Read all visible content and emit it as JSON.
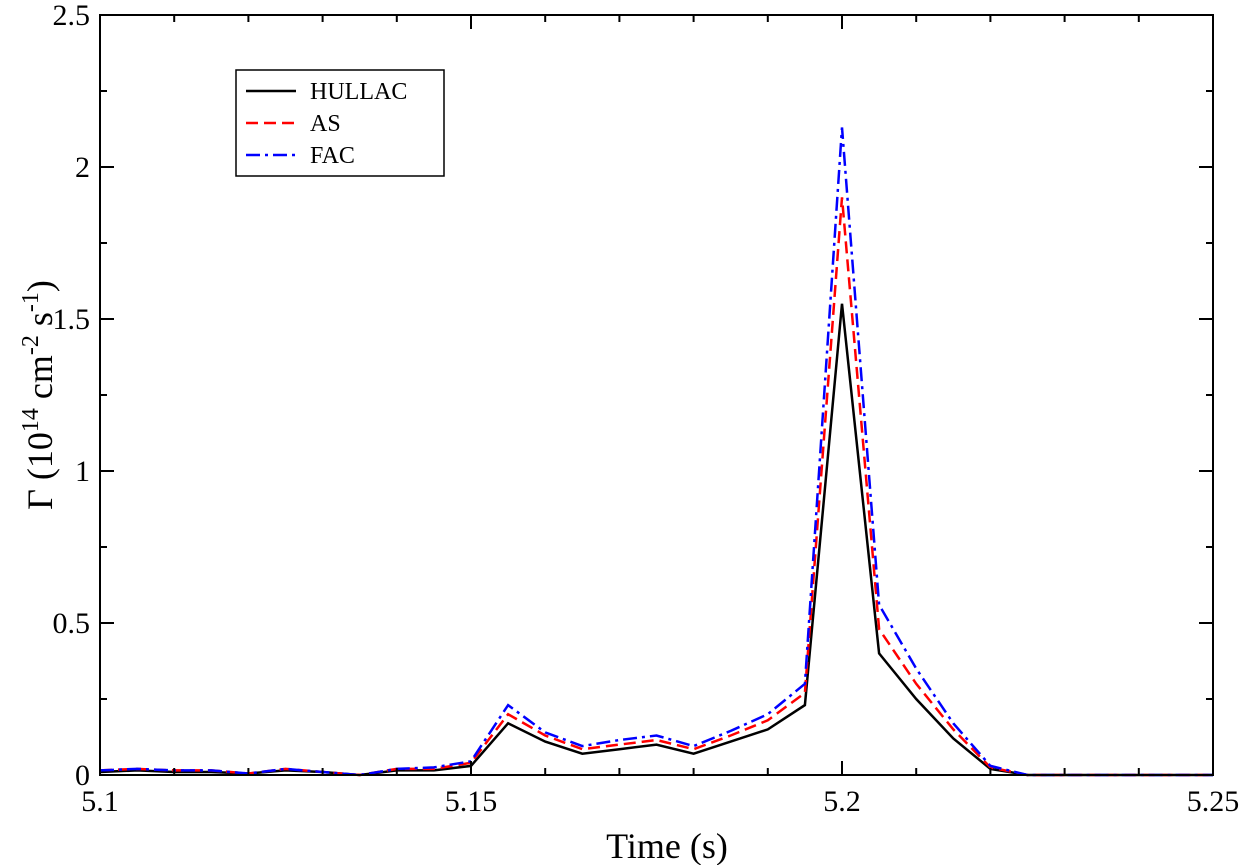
{
  "chart_data": {
    "type": "line",
    "xlabel": "Time (s)",
    "ylabel": {
      "base": "Γ (10",
      "exp1": "14",
      "mid1": " cm",
      "exp2": "-2",
      "mid2": " s",
      "exp3": "-1",
      "end": ")"
    },
    "xlim": [
      5.1,
      5.25
    ],
    "ylim": [
      0,
      2.5
    ],
    "xticks": [
      5.1,
      5.15,
      5.2,
      5.25
    ],
    "xtick_labels": [
      "5.1",
      "5.15",
      "5.2",
      "5.25"
    ],
    "yticks": [
      0,
      0.5,
      1,
      1.5,
      2,
      2.5
    ],
    "ytick_labels": [
      "0",
      "0.5",
      "1",
      "1.5",
      "2",
      "2.5"
    ],
    "grid": false,
    "legend_position": "top-left",
    "series": [
      {
        "name": "HULLAC",
        "color": "#000000",
        "dash": "solid",
        "x": [
          5.1,
          5.105,
          5.11,
          5.115,
          5.12,
          5.125,
          5.13,
          5.135,
          5.14,
          5.145,
          5.15,
          5.155,
          5.16,
          5.165,
          5.17,
          5.175,
          5.18,
          5.185,
          5.19,
          5.195,
          5.2,
          5.205,
          5.21,
          5.215,
          5.22,
          5.225,
          5.23,
          5.235,
          5.24,
          5.245,
          5.25
        ],
        "y": [
          0.01,
          0.015,
          0.01,
          0.01,
          0.005,
          0.015,
          0.01,
          0.0,
          0.015,
          0.015,
          0.03,
          0.17,
          0.11,
          0.07,
          0.085,
          0.1,
          0.07,
          0.11,
          0.15,
          0.23,
          1.55,
          0.4,
          0.25,
          0.12,
          0.02,
          0.0,
          0.0,
          0.0,
          0.0,
          0.0,
          0.0
        ]
      },
      {
        "name": "AS",
        "color": "#ff0000",
        "dash": "dashed",
        "x": [
          5.1,
          5.105,
          5.11,
          5.115,
          5.12,
          5.125,
          5.13,
          5.135,
          5.14,
          5.145,
          5.15,
          5.155,
          5.16,
          5.165,
          5.17,
          5.175,
          5.18,
          5.185,
          5.19,
          5.195,
          5.2,
          5.205,
          5.21,
          5.215,
          5.22,
          5.225,
          5.23,
          5.235,
          5.24,
          5.245,
          5.25
        ],
        "y": [
          0.015,
          0.02,
          0.015,
          0.015,
          0.005,
          0.02,
          0.01,
          0.0,
          0.02,
          0.02,
          0.04,
          0.2,
          0.13,
          0.085,
          0.1,
          0.115,
          0.085,
          0.13,
          0.18,
          0.27,
          1.9,
          0.48,
          0.3,
          0.15,
          0.025,
          0.0,
          0.0,
          0.0,
          0.0,
          0.0,
          0.0
        ]
      },
      {
        "name": "FAC",
        "color": "#0000ff",
        "dash": "dashdot",
        "x": [
          5.1,
          5.105,
          5.11,
          5.115,
          5.12,
          5.125,
          5.13,
          5.135,
          5.14,
          5.145,
          5.15,
          5.155,
          5.16,
          5.165,
          5.17,
          5.175,
          5.18,
          5.185,
          5.19,
          5.195,
          5.2,
          5.205,
          5.21,
          5.215,
          5.22,
          5.225,
          5.23,
          5.235,
          5.24,
          5.245,
          5.25
        ],
        "y": [
          0.015,
          0.02,
          0.015,
          0.015,
          0.005,
          0.02,
          0.01,
          0.0,
          0.02,
          0.025,
          0.045,
          0.23,
          0.14,
          0.095,
          0.115,
          0.13,
          0.095,
          0.145,
          0.2,
          0.3,
          2.13,
          0.56,
          0.35,
          0.17,
          0.03,
          0.0,
          0.0,
          0.0,
          0.0,
          0.0,
          0.0
        ]
      }
    ]
  }
}
